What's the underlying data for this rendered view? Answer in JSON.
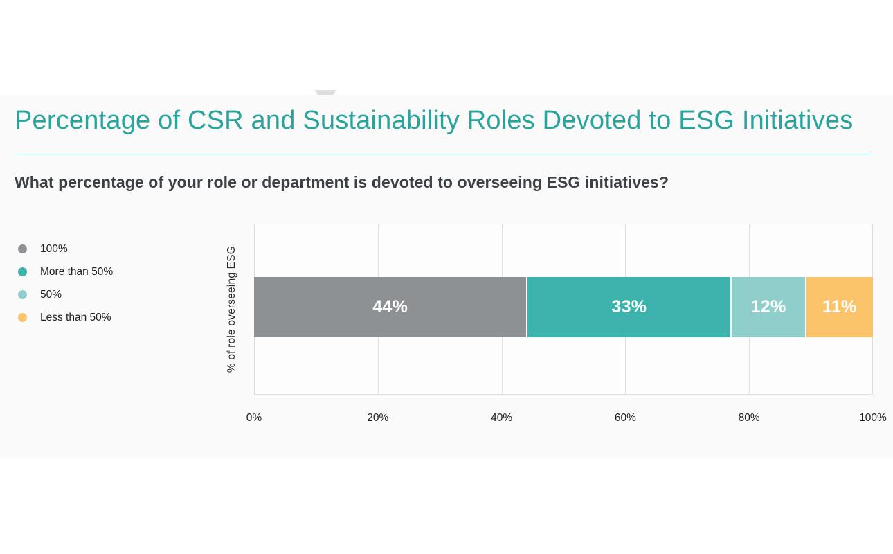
{
  "page": {
    "panel_bg": "#fafafa",
    "plot_bg": "#fdfdfd",
    "grid_color": "#dddddd"
  },
  "header": {
    "title": "Percentage of CSR and Sustainability Roles Devoted to ESG Initiatives",
    "title_color": "#28a49d",
    "rule_color": "#2aa7a0",
    "question": "What percentage of your role or department is devoted to overseeing ESG initiatives?"
  },
  "chart_data": {
    "type": "bar",
    "variant": "horizontal-stacked",
    "title": "Percentage of CSR and Sustainability Roles Devoted to ESG Initiatives",
    "question": "What percentage of your role or department is devoted to overseeing ESG initiatives?",
    "ylabel": "% of role overseeing ESG",
    "xlabel": "",
    "xlim": [
      0,
      100
    ],
    "x_ticks": [
      "0%",
      "20%",
      "40%",
      "60%",
      "80%",
      "100%"
    ],
    "grid": "vertical",
    "legend_position": "left",
    "series": [
      {
        "name": "100%",
        "value": 44,
        "label": "44%",
        "color": "#8e9194"
      },
      {
        "name": "More than 50%",
        "value": 33,
        "label": "33%",
        "color": "#3cb4ad"
      },
      {
        "name": "50%",
        "value": 12,
        "label": "12%",
        "color": "#8fcfcb"
      },
      {
        "name": "Less than 50%",
        "value": 11,
        "label": "11%",
        "color": "#fbc46b"
      }
    ]
  }
}
